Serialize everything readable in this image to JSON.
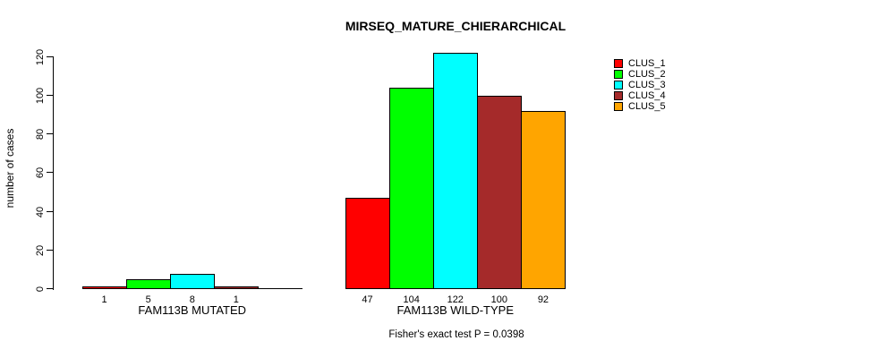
{
  "title": "MIRSEQ_MATURE_CHIERARCHICAL",
  "colors": {
    "background": "#FFFFFF",
    "axis": "#000000",
    "text": "#000000"
  },
  "chart_data": {
    "type": "bar",
    "title": "MIRSEQ_MATURE_CHIERARCHICAL",
    "xlabel": "",
    "ylabel": "number of cases",
    "ylim": [
      0,
      120
    ],
    "yticks": [
      0,
      20,
      40,
      60,
      80,
      100,
      120
    ],
    "grid": false,
    "annotation": "Fisher's exact test P = 0.0398",
    "series_colors": [
      "#FF0000",
      "#00FF00",
      "#00FFFF",
      "#A52A2A",
      "#FFA500"
    ],
    "legend": {
      "position": "right",
      "entries": [
        {
          "label": "CLUS_1",
          "color": "#FF0000"
        },
        {
          "label": "CLUS_2",
          "color": "#00FF00"
        },
        {
          "label": "CLUS_3",
          "color": "#00FFFF"
        },
        {
          "label": "CLUS_4",
          "color": "#A52A2A"
        },
        {
          "label": "CLUS_5",
          "color": "#FFA500"
        }
      ]
    },
    "groups": [
      {
        "label": "FAM113B MUTATED",
        "values": [
          1,
          5,
          8,
          1,
          0
        ],
        "bar_labels": [
          "1",
          "5",
          "8",
          "1",
          ""
        ]
      },
      {
        "label": "FAM113B WILD-TYPE",
        "values": [
          47,
          104,
          122,
          100,
          92
        ],
        "bar_labels": [
          "47",
          "104",
          "122",
          "100",
          "92"
        ]
      }
    ]
  }
}
